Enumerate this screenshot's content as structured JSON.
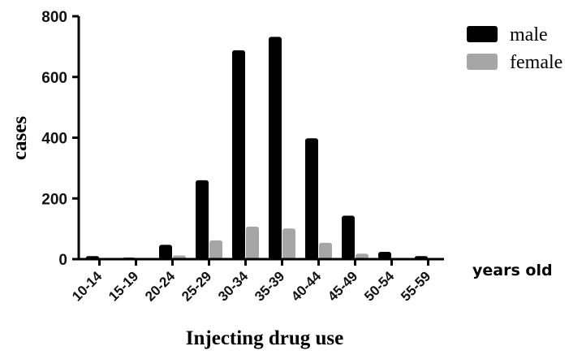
{
  "chart_data": {
    "type": "bar",
    "categories": [
      "10-14",
      "15-19",
      "20-24",
      "25-29",
      "30-34",
      "35-39",
      "40-44",
      "45-49",
      "50-54",
      "55-59"
    ],
    "series": [
      {
        "name": "male",
        "values": [
          10,
          5,
          47,
          260,
          688,
          732,
          398,
          143,
          24,
          10
        ],
        "color": "#000000"
      },
      {
        "name": "female",
        "values": [
          3,
          1,
          12,
          62,
          107,
          101,
          54,
          18,
          3,
          2
        ],
        "color": "#a6a6a6"
      }
    ],
    "xlabel": "Injecting drug use",
    "ylabel": "cases",
    "unit_label": "years old",
    "ylim": [
      0,
      800
    ],
    "yticks": [
      "0",
      "200",
      "400",
      "600",
      "800"
    ],
    "grid": false,
    "legend_position": "top-right"
  }
}
